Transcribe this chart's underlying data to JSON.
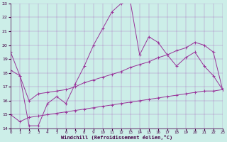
{
  "xlabel": "Windchill (Refroidissement éolien,°C)",
  "xlim": [
    0,
    23
  ],
  "ylim": [
    14,
    23
  ],
  "yticks": [
    14,
    15,
    16,
    17,
    18,
    19,
    20,
    21,
    22,
    23
  ],
  "xticks": [
    0,
    1,
    2,
    3,
    4,
    5,
    6,
    7,
    8,
    9,
    10,
    11,
    12,
    13,
    14,
    15,
    16,
    17,
    18,
    19,
    20,
    21,
    22,
    23
  ],
  "bg_color": "#cceee8",
  "line_color": "#993399",
  "series0_x": [
    0,
    1,
    2,
    3,
    4,
    5,
    6,
    7,
    8,
    9,
    10,
    11,
    12,
    13,
    14,
    15,
    16,
    17,
    18,
    19,
    20,
    21,
    22,
    23
  ],
  "series0_y": [
    19.5,
    17.8,
    14.2,
    14.2,
    15.8,
    16.3,
    15.8,
    17.2,
    18.5,
    20.0,
    21.2,
    22.4,
    23.0,
    23.1,
    19.3,
    20.6,
    20.2,
    19.3,
    18.5,
    19.1,
    19.5,
    18.5,
    17.8,
    16.8
  ],
  "series1_x": [
    0,
    1,
    2,
    3,
    4,
    5,
    6,
    7,
    8,
    9,
    10,
    11,
    12,
    13,
    14,
    15,
    16,
    17,
    18,
    19,
    20,
    21,
    22,
    23
  ],
  "series1_y": [
    18.2,
    17.8,
    16.0,
    16.5,
    16.6,
    16.7,
    16.8,
    17.0,
    17.3,
    17.5,
    17.7,
    17.9,
    18.1,
    18.4,
    18.6,
    18.8,
    19.1,
    19.3,
    19.6,
    19.8,
    20.2,
    20.0,
    19.5,
    16.8
  ],
  "series2_x": [
    0,
    1,
    2,
    3,
    4,
    5,
    6,
    7,
    8,
    9,
    10,
    11,
    12,
    13,
    14,
    15,
    16,
    17,
    18,
    19,
    20,
    21,
    22,
    23
  ],
  "series2_y": [
    15.0,
    14.5,
    14.8,
    14.9,
    15.0,
    15.1,
    15.2,
    15.3,
    15.4,
    15.5,
    15.6,
    15.7,
    15.8,
    15.9,
    16.0,
    16.1,
    16.2,
    16.3,
    16.4,
    16.5,
    16.6,
    16.7,
    16.7,
    16.8
  ]
}
